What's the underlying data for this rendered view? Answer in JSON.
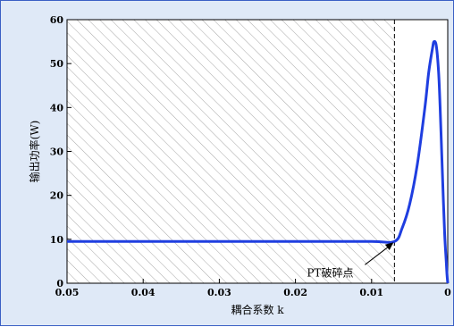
{
  "chart_data": {
    "type": "line",
    "xlabel": "耦合系数 k",
    "ylabel": "输出功率(W)",
    "xlim": [
      0.05,
      0
    ],
    "ylim": [
      0,
      60
    ],
    "x_reversed": true,
    "x_ticks": [
      "0.05",
      "0.04",
      "0.03",
      "0.02",
      "0.01",
      "0"
    ],
    "y_ticks": [
      "0",
      "10",
      "20",
      "30",
      "40",
      "50",
      "60"
    ],
    "grid": false,
    "series": [
      {
        "x": [
          0.05,
          0.04,
          0.03,
          0.02,
          0.01,
          0.007,
          0.006,
          0.005,
          0.004,
          0.003,
          0.0025,
          0.002,
          0.0018,
          0.0015,
          0.0012,
          0.001,
          0.0008,
          0.0006,
          0.0004,
          0.0002,
          0.0001,
          0
        ],
        "values": [
          9.5,
          9.5,
          9.5,
          9.5,
          9.5,
          9.5,
          12.5,
          18,
          27,
          40,
          48,
          53.5,
          55,
          54,
          48,
          40,
          30,
          20,
          11,
          5,
          2,
          0
        ]
      }
    ],
    "annotations": {
      "breakpoint_label": "PT破碎点",
      "breakpoint_x": 0.007,
      "breakpoint_y": 9.5
    },
    "colors": {
      "line": "#1f3ee0",
      "hatch": "#b0b0b0",
      "background": "#dfe9f7"
    }
  }
}
